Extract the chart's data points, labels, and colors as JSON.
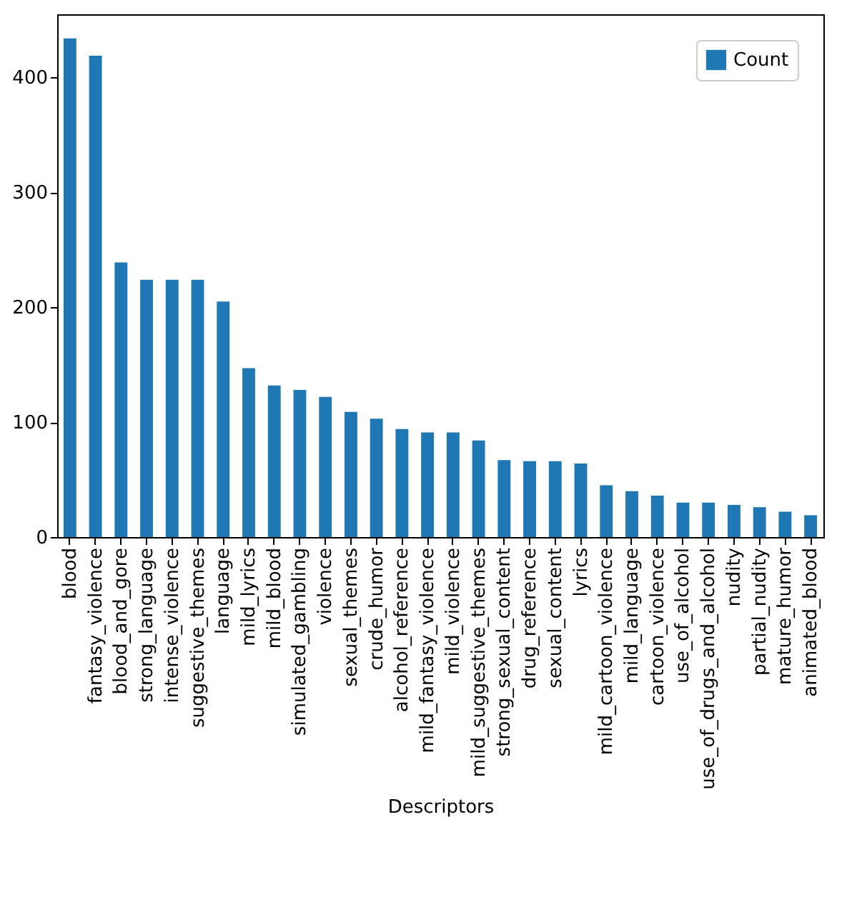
{
  "chart_data": {
    "type": "bar",
    "xlabel": "Descriptors",
    "categories": [
      "blood",
      "fantasy_violence",
      "blood_and_gore",
      "strong_language",
      "intense_violence",
      "suggestive_themes",
      "language",
      "mild_lyrics",
      "mild_blood",
      "simulated_gambling",
      "violence",
      "sexual_themes",
      "crude_humor",
      "alcohol_reference",
      "mild_fantasy_violence",
      "mild_violence",
      "mild_suggestive_themes",
      "strong_sexual_content",
      "drug_reference",
      "sexual_content",
      "lyrics",
      "mild_cartoon_violence",
      "mild_language",
      "cartoon_violence",
      "use_of_alcohol",
      "use_of_drugs_and_alcohol",
      "nudity",
      "partial_nudity",
      "mature_humor",
      "animated_blood"
    ],
    "series": [
      {
        "name": "Count",
        "color": "#1f77b4",
        "values": [
          434,
          419,
          239,
          224,
          224,
          224,
          205,
          147,
          132,
          128,
          122,
          109,
          103,
          94,
          91,
          91,
          84,
          67,
          66,
          66,
          64,
          45,
          40,
          36,
          30,
          30,
          28,
          26,
          22,
          19
        ]
      }
    ],
    "ylim": [
      0,
      455
    ],
    "yticks": [
      0,
      100,
      200,
      300,
      400
    ],
    "grid": false,
    "legend": "top right"
  }
}
